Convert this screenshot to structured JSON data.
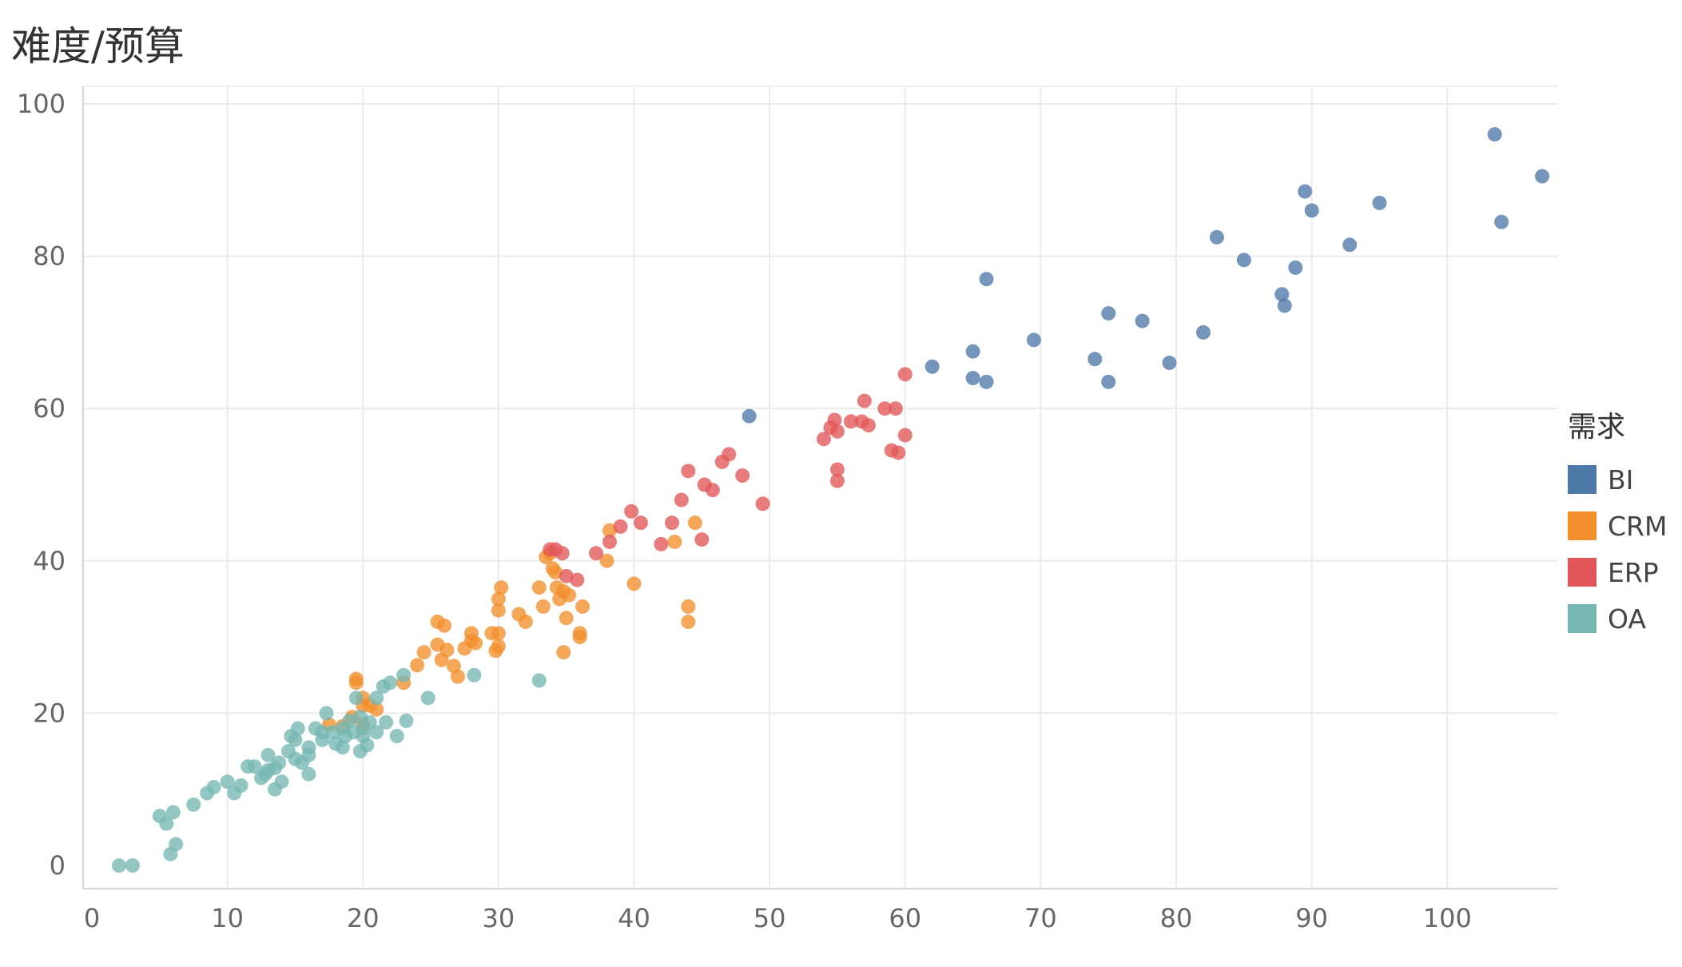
{
  "chart_data": {
    "type": "scatter",
    "title": "难度/预算",
    "xlabel": "",
    "ylabel": "",
    "xlim": [
      0,
      107
    ],
    "ylim": [
      0,
      100
    ],
    "xticks": [
      0,
      10,
      20,
      30,
      40,
      50,
      60,
      70,
      80,
      90,
      100
    ],
    "yticks": [
      0,
      20,
      40,
      60,
      80,
      100
    ],
    "grid": true,
    "legend": {
      "title": "需求",
      "placement": "right"
    },
    "series": [
      {
        "name": "BI",
        "color": "#4e79a7",
        "points": [
          [
            48.5,
            59
          ],
          [
            62,
            65.5
          ],
          [
            65,
            67.5
          ],
          [
            65,
            64
          ],
          [
            66,
            63.5
          ],
          [
            66,
            77
          ],
          [
            69.5,
            69
          ],
          [
            74,
            66.5
          ],
          [
            75,
            63.5
          ],
          [
            75,
            72.5
          ],
          [
            77.5,
            71.5
          ],
          [
            79.5,
            66
          ],
          [
            82,
            70
          ],
          [
            83,
            82.5
          ],
          [
            85,
            79.5
          ],
          [
            87.8,
            75
          ],
          [
            88,
            73.5
          ],
          [
            88.8,
            78.5
          ],
          [
            89.5,
            88.5
          ],
          [
            90,
            86
          ],
          [
            92.8,
            81.5
          ],
          [
            95,
            87
          ],
          [
            103.5,
            96
          ],
          [
            104,
            84.5
          ],
          [
            107,
            90.5
          ]
        ]
      },
      {
        "name": "CRM",
        "color": "#f28e2b",
        "points": [
          [
            19.5,
            24
          ],
          [
            19.5,
            24.5
          ],
          [
            20,
            22
          ],
          [
            20,
            21
          ],
          [
            20.5,
            21
          ],
          [
            21,
            20.5
          ],
          [
            20,
            18.5
          ],
          [
            19.2,
            19.5
          ],
          [
            18.5,
            18.3
          ],
          [
            17.5,
            18.5
          ],
          [
            23,
            24
          ],
          [
            24,
            26.3
          ],
          [
            24.5,
            28
          ],
          [
            25.5,
            29
          ],
          [
            25.5,
            32
          ],
          [
            26,
            31.5
          ],
          [
            25.8,
            27
          ],
          [
            26.2,
            28.3
          ],
          [
            26.7,
            26.2
          ],
          [
            27,
            24.8
          ],
          [
            27.5,
            28.5
          ],
          [
            28,
            30.5
          ],
          [
            28,
            29.5
          ],
          [
            28.3,
            29.2
          ],
          [
            29.5,
            30.5
          ],
          [
            29.8,
            28.2
          ],
          [
            30,
            28.8
          ],
          [
            30,
            30.5
          ],
          [
            30,
            33.5
          ],
          [
            30,
            35
          ],
          [
            30.2,
            36.5
          ],
          [
            31.5,
            33
          ],
          [
            32,
            32
          ],
          [
            33,
            36.5
          ],
          [
            33.3,
            34
          ],
          [
            33.5,
            40.5
          ],
          [
            33.8,
            41
          ],
          [
            34,
            39
          ],
          [
            34.2,
            38.5
          ],
          [
            34.3,
            36.5
          ],
          [
            34.5,
            35
          ],
          [
            34.8,
            36
          ],
          [
            35,
            32.5
          ],
          [
            35.2,
            35.5
          ],
          [
            34.8,
            28
          ],
          [
            36,
            30
          ],
          [
            36,
            30.5
          ],
          [
            36.2,
            34
          ],
          [
            38,
            40
          ],
          [
            38.2,
            44
          ],
          [
            40,
            37
          ],
          [
            43,
            42.5
          ],
          [
            44.5,
            45
          ],
          [
            44,
            34
          ],
          [
            44,
            32
          ]
        ]
      },
      {
        "name": "ERP",
        "color": "#e15759",
        "points": [
          [
            33.8,
            41.5
          ],
          [
            34.2,
            41.5
          ],
          [
            34.7,
            41
          ],
          [
            35,
            38
          ],
          [
            35.8,
            37.5
          ],
          [
            37.2,
            41
          ],
          [
            38.2,
            42.5
          ],
          [
            39,
            44.5
          ],
          [
            39.8,
            46.5
          ],
          [
            40.5,
            45
          ],
          [
            42,
            42.2
          ],
          [
            42.8,
            45
          ],
          [
            43.5,
            48
          ],
          [
            44,
            51.8
          ],
          [
            45,
            42.8
          ],
          [
            45.2,
            50
          ],
          [
            45.8,
            49.3
          ],
          [
            46.5,
            53
          ],
          [
            47,
            54
          ],
          [
            48,
            51.2
          ],
          [
            49.5,
            47.5
          ],
          [
            54,
            56
          ],
          [
            54.5,
            57.5
          ],
          [
            54.8,
            58.5
          ],
          [
            55,
            57
          ],
          [
            55,
            50.5
          ],
          [
            55,
            52
          ],
          [
            56,
            58.3
          ],
          [
            56.8,
            58.3
          ],
          [
            57,
            61
          ],
          [
            57.3,
            57.8
          ],
          [
            58.5,
            60
          ],
          [
            59,
            54.5
          ],
          [
            59.3,
            60
          ],
          [
            59.5,
            54.2
          ],
          [
            60,
            56.5
          ],
          [
            60,
            64.5
          ]
        ]
      },
      {
        "name": "OA",
        "color": "#76b7b2",
        "points": [
          [
            2,
            0
          ],
          [
            3,
            0
          ],
          [
            5,
            6.5
          ],
          [
            5.5,
            5.5
          ],
          [
            6,
            7
          ],
          [
            5.8,
            1.5
          ],
          [
            6.2,
            2.8
          ],
          [
            7.5,
            8
          ],
          [
            8.5,
            9.5
          ],
          [
            9,
            10.3
          ],
          [
            10,
            11
          ],
          [
            10.5,
            9.5
          ],
          [
            11,
            10.5
          ],
          [
            11.5,
            13
          ],
          [
            12,
            13
          ],
          [
            12.5,
            11.5
          ],
          [
            12.8,
            12
          ],
          [
            13,
            12.5
          ],
          [
            13,
            14.5
          ],
          [
            13.5,
            10
          ],
          [
            13.5,
            12.8
          ],
          [
            14,
            11
          ],
          [
            13.8,
            13.5
          ],
          [
            14.5,
            15
          ],
          [
            14.7,
            17
          ],
          [
            15,
            16.5
          ],
          [
            15,
            14
          ],
          [
            15.5,
            13.5
          ],
          [
            15.2,
            18
          ],
          [
            16,
            15.5
          ],
          [
            16,
            14.5
          ],
          [
            16,
            12
          ],
          [
            16.5,
            18
          ],
          [
            17,
            16.5
          ],
          [
            17,
            17.5
          ],
          [
            17.3,
            20
          ],
          [
            17.8,
            17.5
          ],
          [
            18,
            16
          ],
          [
            18.5,
            18
          ],
          [
            18.5,
            15.5
          ],
          [
            18.7,
            17
          ],
          [
            19,
            19
          ],
          [
            19.3,
            17.5
          ],
          [
            19.5,
            22
          ],
          [
            19.8,
            19.5
          ],
          [
            20,
            18
          ],
          [
            19.8,
            15
          ],
          [
            20,
            17
          ],
          [
            20.3,
            15.8
          ],
          [
            20.5,
            18.8
          ],
          [
            21,
            17.5
          ],
          [
            21,
            22
          ],
          [
            21.5,
            23.5
          ],
          [
            21.7,
            18.8
          ],
          [
            22,
            24
          ],
          [
            22.5,
            17
          ],
          [
            23,
            25
          ],
          [
            23.2,
            19
          ],
          [
            24.8,
            22
          ],
          [
            28.2,
            25
          ],
          [
            33,
            24.3
          ]
        ]
      }
    ]
  }
}
